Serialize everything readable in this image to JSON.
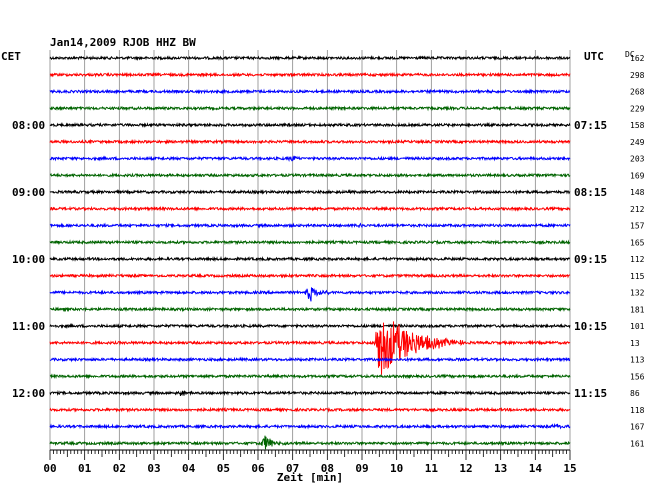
{
  "header": {
    "title": "Jan14,2009  RJOB HHZ BW",
    "left_label": "CET",
    "right_label": "UTC",
    "dc_label": "DC"
  },
  "chart_data": {
    "type": "line",
    "title": "Jan14,2009  RJOB HHZ BW",
    "xlabel": "Zeit [min]",
    "x_ticks": [
      "00",
      "01",
      "02",
      "03",
      "04",
      "05",
      "06",
      "07",
      "08",
      "09",
      "10",
      "11",
      "12",
      "13",
      "14",
      "15"
    ],
    "xlim": [
      0,
      15
    ],
    "grid": true,
    "trace_colors": [
      "#000000",
      "#ff0000",
      "#0000ff",
      "#006400"
    ],
    "left_time_labels": [
      {
        "row": 4,
        "text": "08:00"
      },
      {
        "row": 8,
        "text": "09:00"
      },
      {
        "row": 12,
        "text": "10:00"
      },
      {
        "row": 16,
        "text": "11:00"
      },
      {
        "row": 20,
        "text": "12:00"
      }
    ],
    "right_time_labels": [
      {
        "row": 4,
        "text": "07:15"
      },
      {
        "row": 8,
        "text": "08:15"
      },
      {
        "row": 12,
        "text": "09:15"
      },
      {
        "row": 16,
        "text": "10:15"
      },
      {
        "row": 20,
        "text": "11:15"
      }
    ],
    "dc_offsets": [
      162,
      298,
      268,
      229,
      158,
      249,
      203,
      169,
      148,
      212,
      157,
      165,
      112,
      115,
      132,
      181,
      101,
      13,
      113,
      156,
      86,
      118,
      167,
      161
    ],
    "events": [
      {
        "row": 6,
        "minute": 7.0,
        "amplitude": 3,
        "duration": 0.3
      },
      {
        "row": 10,
        "minute": 8.9,
        "amplitude": 3,
        "duration": 0.4
      },
      {
        "row": 14,
        "minute": 7.5,
        "amplitude": 9,
        "duration": 0.6
      },
      {
        "row": 17,
        "minute": 9.5,
        "amplitude": 36,
        "duration": 2.5
      },
      {
        "row": 20,
        "minute": 3.8,
        "amplitude": 3,
        "duration": 0.4
      },
      {
        "row": 22,
        "minute": 14.6,
        "amplitude": 3,
        "duration": 0.4
      },
      {
        "row": 23,
        "minute": 6.2,
        "amplitude": 8,
        "duration": 0.7
      }
    ]
  }
}
